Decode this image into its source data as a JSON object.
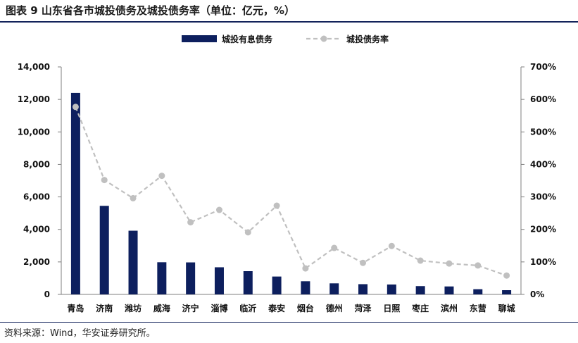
{
  "title": "图表 9 山东省各市城投债务及城投债务率（单位：亿元，%）",
  "source": "资料来源：Wind，华安证券研究所。",
  "colors": {
    "bar": "#0d1f5e",
    "line": "#c0c0c0",
    "marker": "#c0c0c0",
    "rule": "#13235b"
  },
  "chart_data": {
    "type": "bar",
    "categories": [
      "青岛",
      "济南",
      "潍坊",
      "威海",
      "济宁",
      "淄博",
      "临沂",
      "泰安",
      "烟台",
      "德州",
      "菏泽",
      "日照",
      "枣庄",
      "滨州",
      "东营",
      "聊城"
    ],
    "series": [
      {
        "name": "城投有息债务",
        "type": "bar",
        "axis": "left",
        "values": [
          12400,
          5450,
          3920,
          1980,
          1970,
          1670,
          1430,
          1100,
          810,
          680,
          630,
          610,
          510,
          490,
          320,
          260
        ]
      },
      {
        "name": "城投债务率",
        "type": "line",
        "axis": "right",
        "values": [
          577,
          352,
          296,
          365,
          222,
          260,
          191,
          273,
          80,
          143,
          97,
          149,
          104,
          95,
          89,
          58
        ]
      }
    ],
    "y_left": {
      "min": 0,
      "max": 14000,
      "step": 2000,
      "tick_labels": [
        "0",
        "2,000",
        "4,000",
        "6,000",
        "8,000",
        "10,000",
        "12,000",
        "14,000"
      ]
    },
    "y_right": {
      "min": 0,
      "max": 700,
      "step": 100,
      "tick_labels": [
        "0%",
        "100%",
        "200%",
        "300%",
        "400%",
        "500%",
        "600%",
        "700%"
      ]
    },
    "legend_position": "top-center",
    "grid": false
  }
}
